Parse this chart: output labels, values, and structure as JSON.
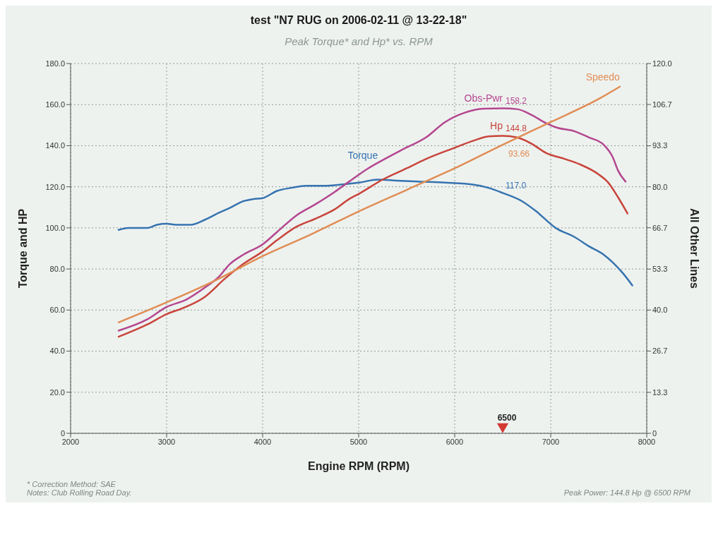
{
  "chart_data": {
    "type": "line",
    "title": "test \"N7 RUG on 2006-02-11 @ 13-22-18\"",
    "subtitle": "Peak Torque* and Hp* vs. RPM",
    "xlabel": "Engine RPM (RPM)",
    "ylabel": "Torque and HP",
    "y2label": "All Other Lines",
    "xlim": [
      2000,
      8000
    ],
    "xticks": [
      2000,
      3000,
      4000,
      5000,
      6000,
      7000,
      8000
    ],
    "ylim": [
      0,
      180
    ],
    "yticks": [
      0,
      {
        "value": 20,
        "label": "20.0"
      },
      {
        "value": 40,
        "label": "40.0"
      },
      {
        "value": 60,
        "label": "60.0"
      },
      {
        "value": 80,
        "label": "80.0"
      },
      {
        "value": 100,
        "label": "100.0"
      },
      {
        "value": 120,
        "label": "120.0"
      },
      {
        "value": 140,
        "label": "140.0"
      },
      {
        "value": 160,
        "label": "160.0"
      },
      {
        "value": 180,
        "label": "180.0"
      }
    ],
    "y2lim": [
      0,
      120
    ],
    "y2ticks": [
      0,
      13.3,
      26.7,
      {
        "value": 40,
        "label": "40.0"
      },
      53.3,
      66.7,
      {
        "value": 80,
        "label": "80.0"
      },
      93.3,
      106.7,
      {
        "value": 120,
        "label": "120.0"
      }
    ],
    "grid": true,
    "marker": "none",
    "line_style": "solid",
    "series": [
      {
        "name": "Torque",
        "color": "#3673b0",
        "x": [
          2500,
          2600,
          2800,
          2900,
          3000,
          3100,
          3250,
          3400,
          3550,
          3650,
          3800,
          3900,
          4000,
          4150,
          4300,
          4450,
          4650,
          4800,
          5000,
          5200,
          5400,
          5650,
          5900,
          6200,
          6350,
          6500,
          6700,
          6850,
          7050,
          7250,
          7400,
          7550,
          7650,
          7750,
          7850
        ],
        "values": [
          99,
          100,
          100,
          101.5,
          102,
          101.5,
          101.5,
          104,
          107.5,
          109.5,
          113,
          114,
          114.5,
          118,
          119.5,
          120.5,
          120.5,
          121,
          122,
          123.5,
          123,
          122.5,
          122,
          121,
          119.5,
          117.0,
          113,
          108,
          100,
          95.5,
          91,
          87,
          83,
          78,
          72
        ],
        "value_labels": [
          null,
          null,
          null,
          null,
          null,
          null,
          null,
          null,
          null,
          null,
          null,
          null,
          null,
          null,
          null,
          null,
          null,
          null,
          null,
          null,
          null,
          null,
          null,
          null,
          null,
          "117.0",
          null,
          null,
          null,
          null,
          null,
          null,
          null,
          null,
          null
        ]
      },
      {
        "name": "Obs-Pwr",
        "color": "#b4468f",
        "x": [
          2500,
          2800,
          3000,
          3200,
          3400,
          3550,
          3650,
          3800,
          4000,
          4150,
          4350,
          4550,
          4750,
          4900,
          5100,
          5250,
          5450,
          5700,
          5900,
          6100,
          6300,
          6500,
          6650,
          6800,
          6950,
          7050,
          7250,
          7400,
          7550,
          7650,
          7700,
          7780
        ],
        "values": [
          50,
          55.5,
          61.5,
          65,
          71,
          76.5,
          82,
          87,
          92,
          98,
          106,
          111.5,
          117.5,
          122.5,
          129,
          133,
          138,
          144,
          151.5,
          156,
          158,
          158.2,
          157.8,
          155,
          151,
          149,
          147,
          144,
          140.5,
          134,
          128,
          122.5
        ],
        "value_labels": [
          null,
          null,
          null,
          null,
          null,
          null,
          null,
          null,
          null,
          null,
          null,
          null,
          null,
          null,
          null,
          null,
          null,
          null,
          null,
          null,
          null,
          "158.2",
          null,
          null,
          null,
          null,
          null,
          null,
          null,
          null,
          null,
          null
        ]
      },
      {
        "name": "Hp",
        "color": "#c8453c",
        "x": [
          2500,
          2800,
          3000,
          3200,
          3400,
          3600,
          3800,
          4000,
          4150,
          4350,
          4550,
          4750,
          4900,
          5000,
          5250,
          5500,
          5700,
          6000,
          6200,
          6350,
          6500,
          6650,
          6800,
          6950,
          7150,
          7300,
          7500,
          7600,
          7700,
          7800
        ],
        "values": [
          47,
          53,
          58,
          61.5,
          66.5,
          75,
          82.5,
          88.5,
          94,
          100.5,
          104.5,
          109,
          114,
          116.5,
          123.5,
          129,
          133.5,
          139,
          142.5,
          144.5,
          144.8,
          144,
          141,
          136.5,
          133.5,
          131,
          126,
          122,
          115,
          107
        ],
        "value_labels": [
          null,
          null,
          null,
          null,
          null,
          null,
          null,
          null,
          null,
          null,
          null,
          null,
          null,
          null,
          null,
          null,
          null,
          null,
          null,
          null,
          "144.8",
          null,
          null,
          null,
          null,
          null,
          null,
          null,
          null,
          null
        ]
      },
      {
        "name": "Speedo",
        "color": "#e08d55",
        "axis": "y2",
        "x": [
          2500,
          3000,
          3500,
          4000,
          4500,
          5000,
          5500,
          6000,
          6500,
          7000,
          7500,
          7720
        ],
        "values": [
          36,
          42.5,
          49.5,
          57.5,
          64.5,
          72,
          79,
          86,
          93.66,
          101,
          108.5,
          112.5
        ],
        "value_labels": [
          null,
          null,
          null,
          null,
          null,
          null,
          null,
          null,
          "93.66",
          null,
          null,
          null
        ]
      },
      {
        "type": "scatter",
        "color": "#d23a34",
        "marker": "triangle",
        "x": [
          6500
        ],
        "values": [
          2.5
        ]
      }
    ],
    "annotations": [
      {
        "text": "6500",
        "x": 6500,
        "y": 2.5
      },
      "* Correction Method: SAE",
      "Notes: Club Rolling Road Day.",
      "Peak Power: 144.8 Hp @ 6500 RPM"
    ]
  }
}
